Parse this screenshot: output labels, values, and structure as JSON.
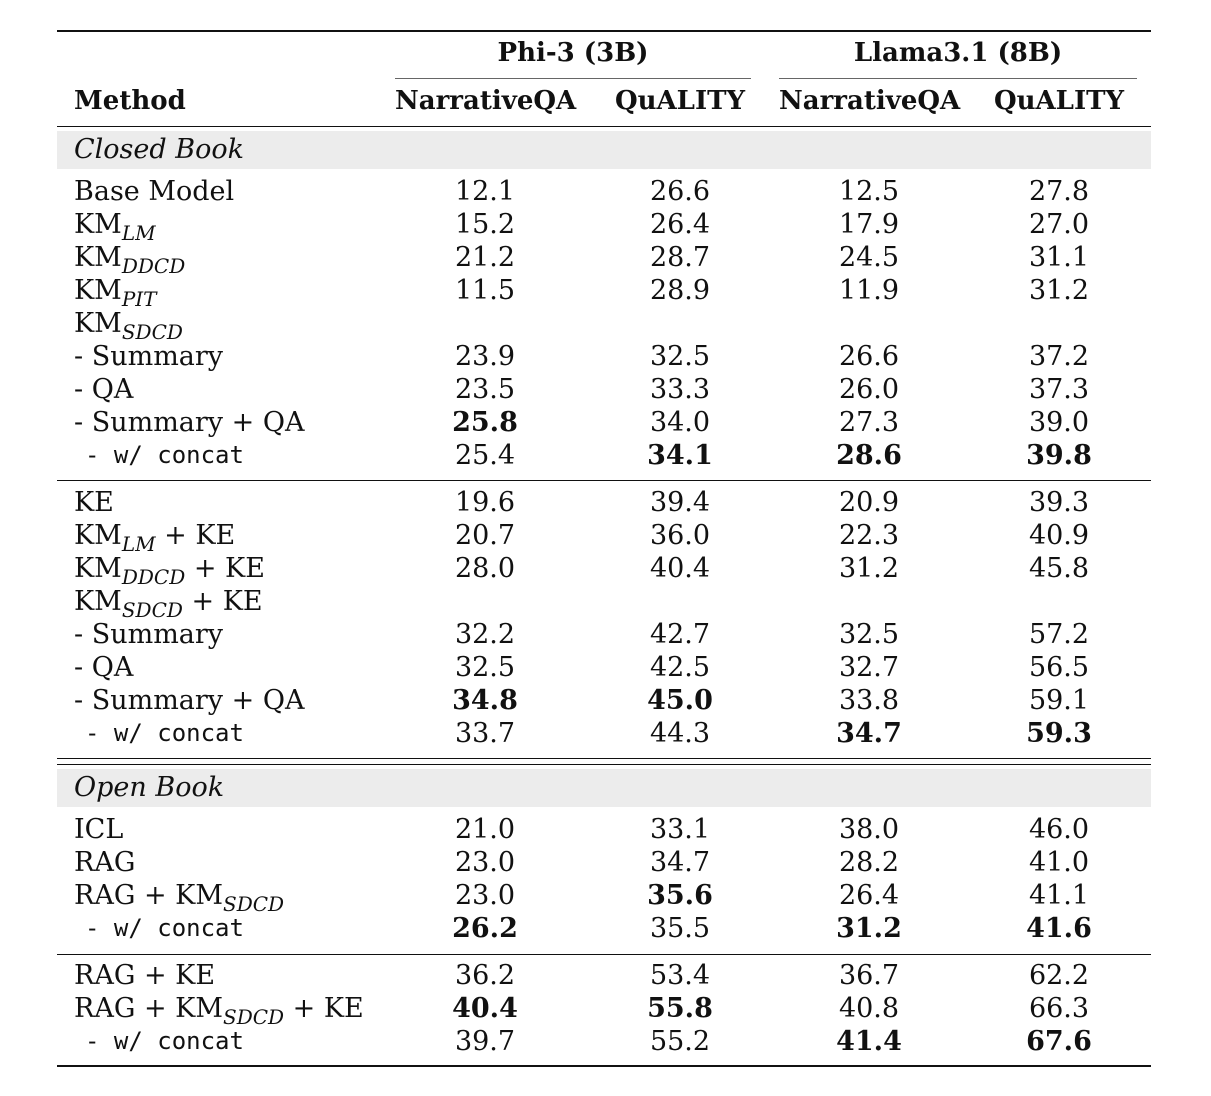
{
  "header": {
    "method": "Method",
    "groups": [
      "Phi-3 (3B)",
      "Llama3.1 (8B)"
    ],
    "columns": [
      "NarrativeQA",
      "QuALITY",
      "NarrativeQA",
      "QuALITY"
    ]
  },
  "sections": [
    {
      "label": "Closed Book"
    },
    {
      "label": "Open Book"
    }
  ],
  "rows": [
    {
      "base": "Base Model",
      "sub": "",
      "suffix": "",
      "v": [
        "12.1",
        "26.6",
        "12.5",
        "27.8"
      ]
    },
    {
      "base": "KM",
      "sub": "LM",
      "suffix": "",
      "v": [
        "15.2",
        "26.4",
        "17.9",
        "27.0"
      ]
    },
    {
      "base": "KM",
      "sub": "DDCD",
      "suffix": "",
      "v": [
        "21.2",
        "28.7",
        "24.5",
        "31.1"
      ]
    },
    {
      "base": "KM",
      "sub": "PIT",
      "suffix": "",
      "v": [
        "11.5",
        "28.9",
        "11.9",
        "31.2"
      ]
    },
    {
      "base": "KM",
      "sub": "SDCD",
      "suffix": "",
      "v": [
        "",
        "",
        "",
        ""
      ]
    },
    {
      "base": "- Summary",
      "sub": "",
      "suffix": "",
      "v": [
        "23.9",
        "32.5",
        "26.6",
        "37.2"
      ]
    },
    {
      "base": "- QA",
      "sub": "",
      "suffix": "",
      "v": [
        "23.5",
        "33.3",
        "26.0",
        "37.3"
      ]
    },
    {
      "base": "- Summary + QA",
      "sub": "",
      "suffix": "",
      "v": [
        "25.8",
        "34.0",
        "27.3",
        "39.0"
      ]
    },
    {
      "base": "- w/ concat",
      "sub": "",
      "suffix": "",
      "v": [
        "25.4",
        "34.1",
        "28.6",
        "39.8"
      ]
    },
    {
      "base": "KE",
      "sub": "",
      "suffix": "",
      "v": [
        "19.6",
        "39.4",
        "20.9",
        "39.3"
      ]
    },
    {
      "base": "KM",
      "sub": "LM",
      "suffix": " + KE",
      "v": [
        "20.7",
        "36.0",
        "22.3",
        "40.9"
      ]
    },
    {
      "base": "KM",
      "sub": "DDCD",
      "suffix": " + KE",
      "v": [
        "28.0",
        "40.4",
        "31.2",
        "45.8"
      ]
    },
    {
      "base": "KM",
      "sub": "SDCD",
      "suffix": " + KE",
      "v": [
        "",
        "",
        "",
        ""
      ]
    },
    {
      "base": "- Summary",
      "sub": "",
      "suffix": "",
      "v": [
        "32.2",
        "42.7",
        "32.5",
        "57.2"
      ]
    },
    {
      "base": "- QA",
      "sub": "",
      "suffix": "",
      "v": [
        "32.5",
        "42.5",
        "32.7",
        "56.5"
      ]
    },
    {
      "base": "- Summary + QA",
      "sub": "",
      "suffix": "",
      "v": [
        "34.8",
        "45.0",
        "33.8",
        "59.1"
      ]
    },
    {
      "base": "- w/ concat",
      "sub": "",
      "suffix": "",
      "v": [
        "33.7",
        "44.3",
        "34.7",
        "59.3"
      ]
    },
    {
      "base": "ICL",
      "sub": "",
      "suffix": "",
      "v": [
        "21.0",
        "33.1",
        "38.0",
        "46.0"
      ]
    },
    {
      "base": "RAG",
      "sub": "",
      "suffix": "",
      "v": [
        "23.0",
        "34.7",
        "28.2",
        "41.0"
      ]
    },
    {
      "base": "RAG + KM",
      "sub": "SDCD",
      "suffix": "",
      "v": [
        "23.0",
        "35.6",
        "26.4",
        "41.1"
      ]
    },
    {
      "base": "- w/ concat",
      "sub": "",
      "suffix": "",
      "v": [
        "26.2",
        "35.5",
        "31.2",
        "41.6"
      ]
    },
    {
      "base": "RAG + KE",
      "sub": "",
      "suffix": "",
      "v": [
        "36.2",
        "53.4",
        "36.7",
        "62.2"
      ]
    },
    {
      "base": "RAG + KM",
      "sub": "SDCD",
      "suffix": " + KE",
      "v": [
        "40.4",
        "55.8",
        "40.8",
        "66.3"
      ]
    },
    {
      "base": "- w/ concat",
      "sub": "",
      "suffix": "",
      "v": [
        "39.7",
        "55.2",
        "41.4",
        "67.6"
      ]
    }
  ]
}
